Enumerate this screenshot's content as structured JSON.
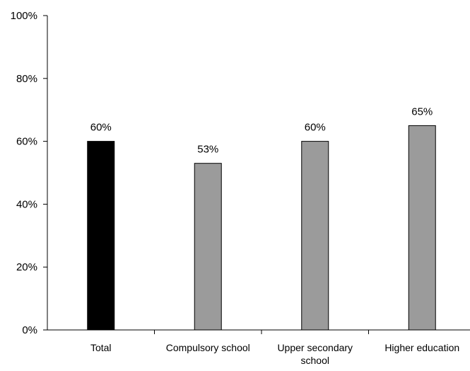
{
  "chart_data": {
    "type": "bar",
    "title": "",
    "xlabel": "",
    "ylabel": "",
    "categories": [
      "Total",
      "Compulsory school",
      "Upper secondary school",
      "Higher education"
    ],
    "category_lines": [
      [
        "Total"
      ],
      [
        "Compulsory school"
      ],
      [
        "Upper secondary",
        "school"
      ],
      [
        "Higher education"
      ]
    ],
    "values": [
      60,
      53,
      60,
      65
    ],
    "data_labels": [
      "60%",
      "53%",
      "60%",
      "65%"
    ],
    "bar_colors": [
      "#000000",
      "#9b9b9b",
      "#9b9b9b",
      "#9b9b9b"
    ],
    "ylim": [
      0,
      100
    ],
    "yticks": [
      0,
      20,
      40,
      60,
      80,
      100
    ],
    "ytick_labels": [
      "0%",
      "20%",
      "40%",
      "60%",
      "80%",
      "100%"
    ],
    "grid": false,
    "legend": "none"
  }
}
